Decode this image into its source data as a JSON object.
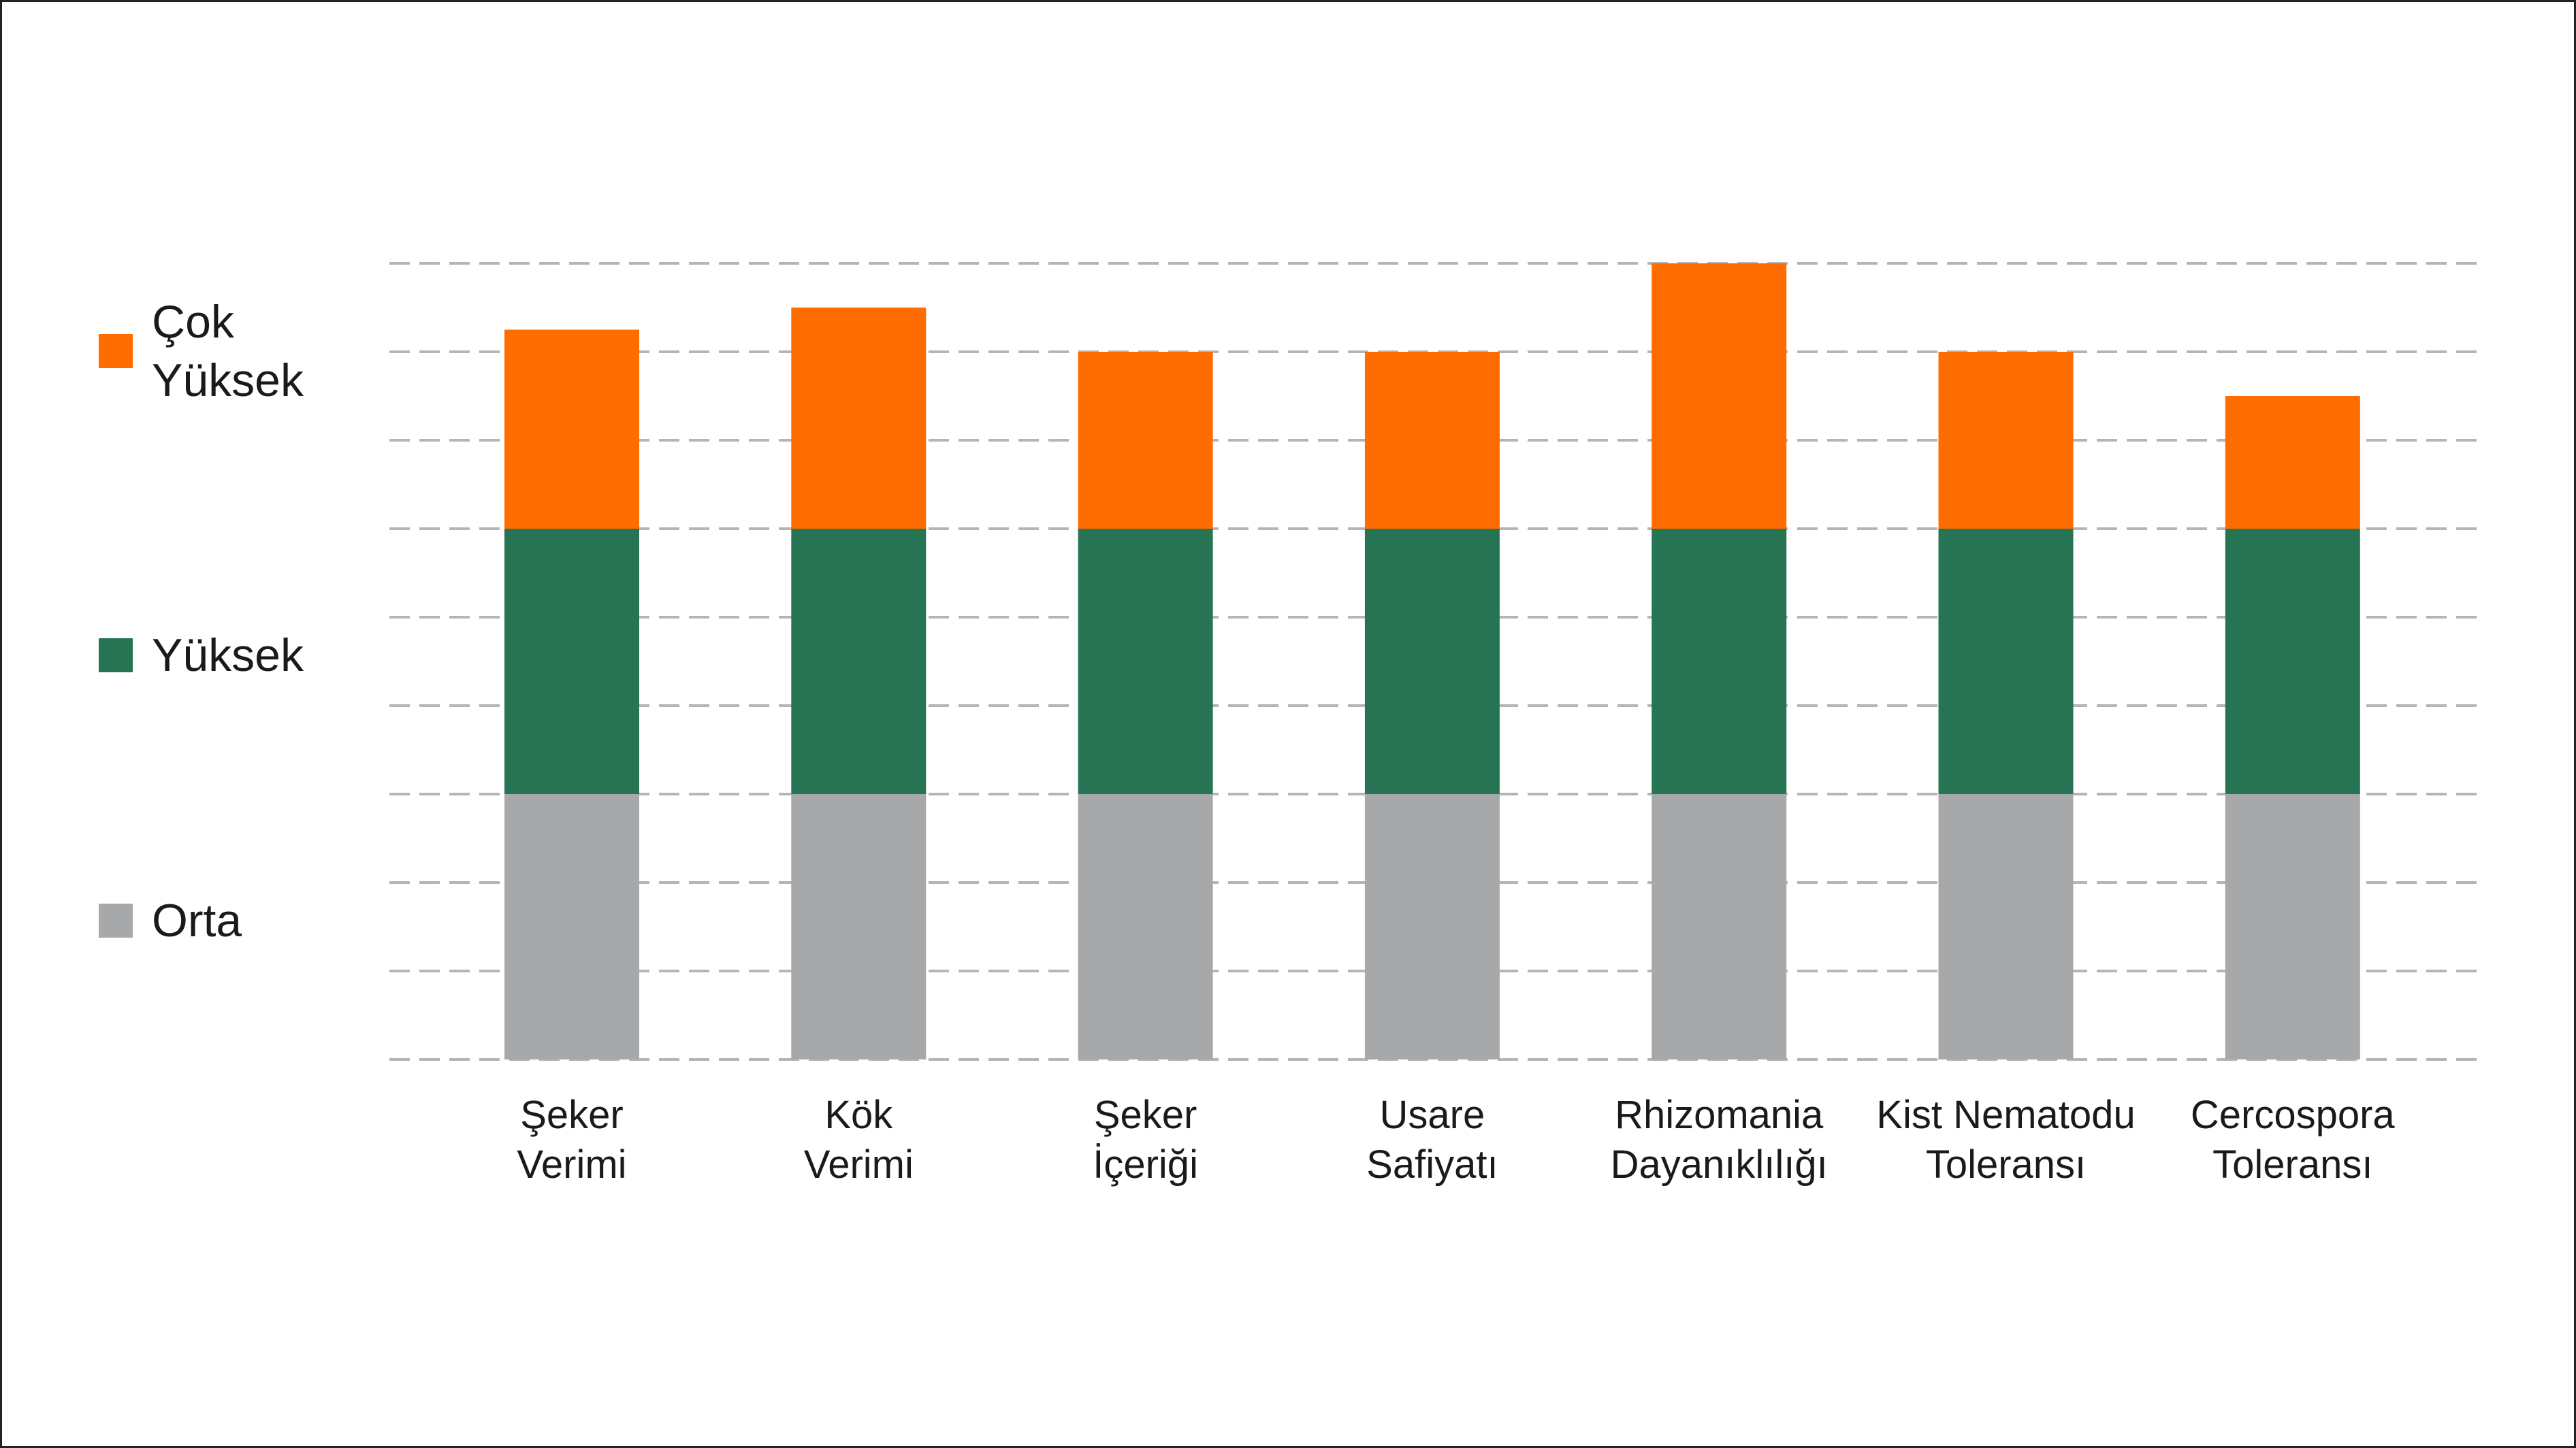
{
  "chart_data": {
    "type": "bar",
    "stacked": true,
    "categories": [
      [
        "Şeker",
        "Verimi"
      ],
      [
        "Kök",
        "Verimi"
      ],
      [
        "Şeker",
        "İçeriği"
      ],
      [
        "Usare",
        "Safiyatı"
      ],
      [
        "Rhizomania",
        "Dayanıklılığı"
      ],
      [
        "Kist Nematodu",
        "Toleransı"
      ],
      [
        "Cercospora",
        "Toleransı"
      ]
    ],
    "series": [
      {
        "name": "Orta",
        "color": "#A7A8AA",
        "values": [
          3,
          3,
          3,
          3,
          3,
          3,
          3
        ]
      },
      {
        "name": "Yüksek",
        "color": "#267454",
        "values": [
          3,
          3,
          3,
          3,
          3,
          3,
          3
        ]
      },
      {
        "name": "Çok Yüksek",
        "color": "#FF6C00",
        "values": [
          2.25,
          2.5,
          2,
          2,
          3,
          2,
          1.5
        ]
      }
    ],
    "legend": [
      {
        "label": "Çok Yüksek",
        "color": "#FF6C00"
      },
      {
        "label": "Yüksek",
        "color": "#267454"
      },
      {
        "label": "Orta",
        "color": "#A7A8AA"
      }
    ],
    "ylim": [
      0,
      9
    ],
    "grid": "dashed",
    "grid_color": "#B5B5B5",
    "legend_position": "left"
  }
}
